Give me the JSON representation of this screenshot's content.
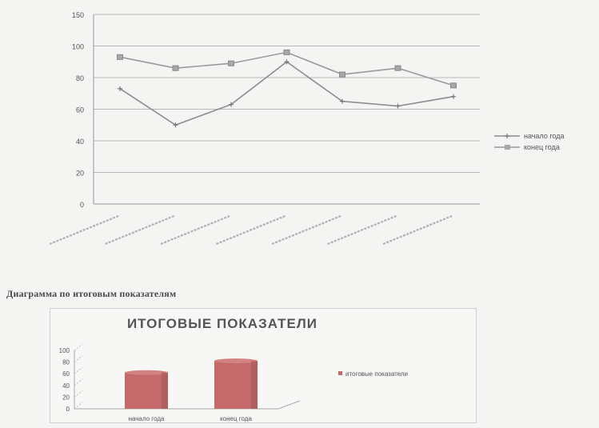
{
  "caption": "Диаграмма по итоговым показателям",
  "chart_data": [
    {
      "type": "line",
      "title": "",
      "xlabel": "",
      "ylabel": "",
      "categories": [
        "",
        "",
        "",
        "",
        "",
        "",
        ""
      ],
      "ylim": [
        0,
        150
      ],
      "yticks": [
        "0",
        "20",
        "40",
        "60",
        "80",
        "100",
        "150"
      ],
      "grid": true,
      "legend_position": "right",
      "series": [
        {
          "name": "начало года",
          "color": "#8c8c8c",
          "marker": "cross",
          "values": [
            73,
            50,
            63,
            90,
            65,
            62,
            68
          ]
        },
        {
          "name": "конец года",
          "color": "#9a9a9a",
          "marker": "square",
          "values": [
            93,
            86,
            89,
            96,
            82,
            86,
            75
          ]
        }
      ]
    },
    {
      "type": "bar",
      "title": "Итоговые показатели",
      "xlabel": "",
      "ylabel": "",
      "categories": [
        "начало года",
        "конец года"
      ],
      "ylim": [
        0,
        100
      ],
      "yticks": [
        "0",
        "20",
        "40",
        "60",
        "80",
        "100"
      ],
      "legend_position": "right",
      "series": [
        {
          "name": "итоговые показатели",
          "color": "#c46a6a",
          "values": [
            62,
            82
          ]
        }
      ]
    }
  ]
}
